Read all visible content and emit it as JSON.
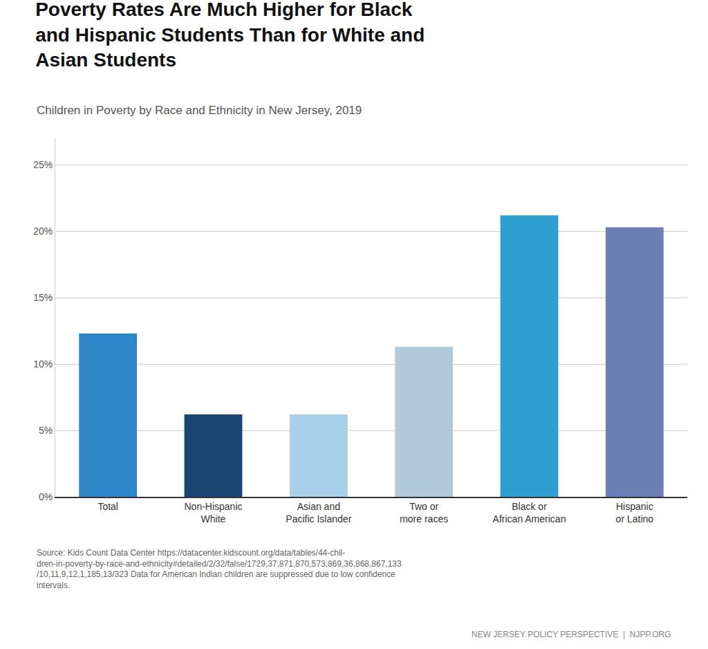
{
  "chart_data": {
    "type": "bar",
    "title": "Poverty Rates Are Much Higher for Black\nand Hispanic Students Than for White and\nAsian Students",
    "subtitle": "Children in Poverty by Race and Ethnicity in New Jersey, 2019",
    "categories": [
      "Total",
      "Non-Hispanic\nWhite",
      "Asian and\nPacific Islander",
      "Two or\nmore races",
      "Black or\nAfrican American",
      "Hispanic\nor Latino"
    ],
    "values": [
      12.3,
      6.2,
      6.2,
      11.3,
      21.2,
      20.3
    ],
    "colors": [
      "#2e86c8",
      "#1a4472",
      "#a8d0e8",
      "#b0c8d8",
      "#2e9fd0",
      "#6b7fb5"
    ],
    "ylim": [
      0,
      27
    ],
    "yticks": [
      {
        "value": 0,
        "label": "0%"
      },
      {
        "value": 5,
        "label": "5%"
      },
      {
        "value": 10,
        "label": "10%"
      },
      {
        "value": 15,
        "label": "15%"
      },
      {
        "value": 20,
        "label": "20%"
      },
      {
        "value": 25,
        "label": "25%"
      }
    ],
    "grid": true,
    "annotations": [
      "Source: Kids Count Data Center https://datacenter.kidscount.org/data/tables/44-chil-\ndren-in-poverty-by-race-and-ethnicity#detailed/2/32/false/1729,37,871,870,573,869,36,868,867,133\n/10,11,9,12,1,185,13/323 Data for American Indian children are suppressed due to low confidence\nintervals.",
      "NEW JERSEY POLICY PERSPECTIVE  |  NJPP.ORG"
    ]
  }
}
